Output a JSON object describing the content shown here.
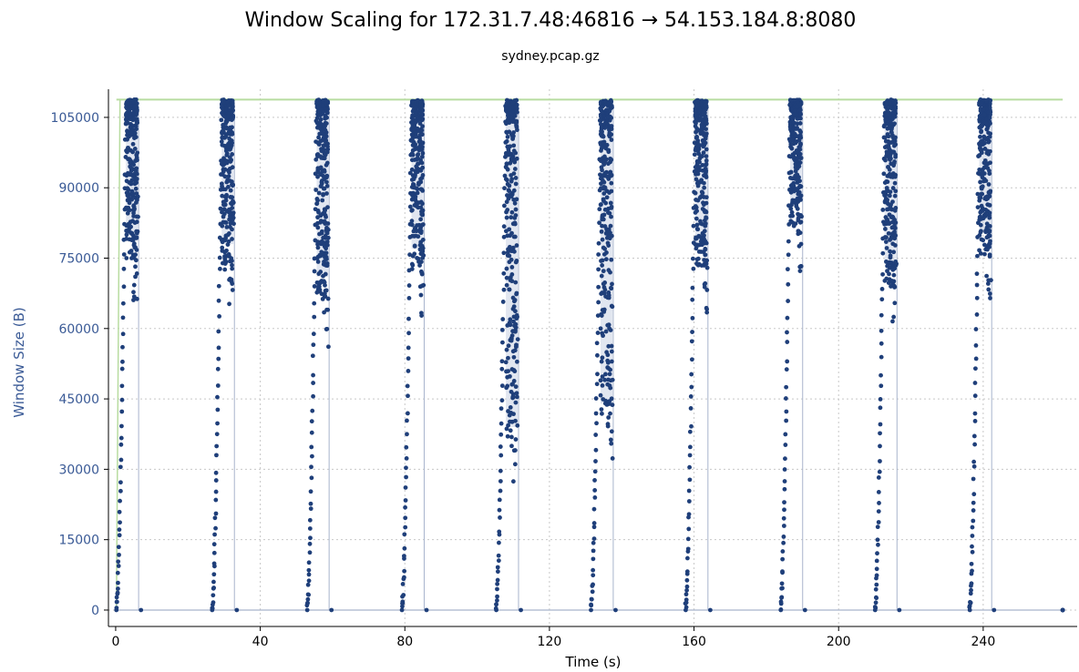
{
  "chart_data": {
    "type": "scatter",
    "title": "Window Scaling for 172.31.7.48:46816 → 54.153.184.8:8080",
    "subtitle": "sydney.pcap.gz",
    "xlabel": "Time (s)",
    "ylabel": "Window Size (B)",
    "xlim": [
      -2,
      266
    ],
    "ylim": [
      -3500,
      111000
    ],
    "xticks": [
      0,
      40,
      80,
      120,
      160,
      200,
      240
    ],
    "yticks": [
      0,
      15000,
      30000,
      45000,
      60000,
      75000,
      90000,
      105000
    ],
    "xtick_labels": [
      "0",
      "40",
      "80",
      "120",
      "160",
      "200",
      "240"
    ],
    "ytick_labels": [
      "0",
      "15000",
      "30000",
      "45000",
      "60000",
      "75000",
      "90000",
      "105000"
    ],
    "grid": true,
    "window_limit": 108800,
    "baseline_end": 262,
    "bursts": [
      {
        "start": 0.2,
        "end": 6.5,
        "min_value": 65000
      },
      {
        "start": 26.7,
        "end": 33.0,
        "min_value": 63000
      },
      {
        "start": 53.0,
        "end": 59.2,
        "min_value": 56000
      },
      {
        "start": 79.2,
        "end": 85.5,
        "min_value": 62000
      },
      {
        "start": 105.3,
        "end": 111.6,
        "min_value": 24000
      },
      {
        "start": 131.5,
        "end": 137.8,
        "min_value": 29000
      },
      {
        "start": 157.7,
        "end": 164.0,
        "min_value": 63000
      },
      {
        "start": 184.0,
        "end": 190.2,
        "min_value": 72000
      },
      {
        "start": 210.1,
        "end": 216.3,
        "min_value": 59000
      },
      {
        "start": 236.3,
        "end": 242.5,
        "min_value": 66000
      }
    ],
    "colors": {
      "points": "#1f3f7a",
      "connector": "#a8b4cc",
      "limit_line": "#b8dca0"
    }
  }
}
